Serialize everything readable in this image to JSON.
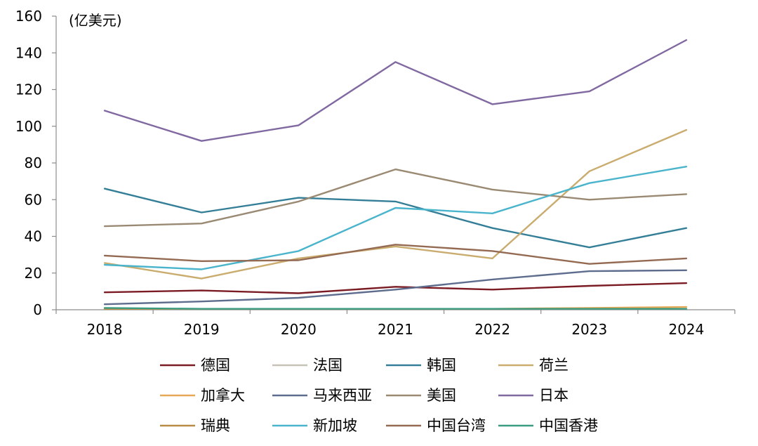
{
  "chart_data": {
    "type": "line",
    "unit_label": "(亿美元)",
    "x": [
      "2018",
      "2019",
      "2020",
      "2021",
      "2022",
      "2023",
      "2024"
    ],
    "ylim": [
      0,
      160
    ],
    "yticks": [
      0,
      20,
      40,
      60,
      80,
      100,
      120,
      140,
      160
    ],
    "grid": false,
    "legend_position": "bottom",
    "series": [
      {
        "name": "德国",
        "color": "#7b1b23",
        "values": [
          9.5,
          10.5,
          9,
          12.5,
          11,
          13,
          14.5
        ]
      },
      {
        "name": "法国",
        "color": "#c6c2b7",
        "values": [
          0.5,
          0.5,
          0.5,
          0.5,
          0.5,
          0.5,
          0.5
        ]
      },
      {
        "name": "韩国",
        "color": "#347f97",
        "values": [
          66,
          53,
          61,
          59,
          44.5,
          34,
          44.5
        ]
      },
      {
        "name": "荷兰",
        "color": "#c9ac6e",
        "values": [
          25.5,
          17,
          28,
          34.5,
          28,
          75.5,
          98
        ]
      },
      {
        "name": "加拿大",
        "color": "#e5a957",
        "values": [
          0.5,
          0.5,
          0.5,
          0.5,
          0.5,
          1,
          1.5
        ]
      },
      {
        "name": "马来西亚",
        "color": "#5e6d8e",
        "values": [
          3,
          4.5,
          6.5,
          11,
          16.5,
          21,
          21.5
        ]
      },
      {
        "name": "美国",
        "color": "#9a8a73",
        "values": [
          45.5,
          47,
          59,
          76.5,
          65.5,
          60,
          63
        ]
      },
      {
        "name": "日本",
        "color": "#8068a0",
        "values": [
          108.5,
          92,
          100.5,
          135,
          112,
          119,
          147
        ]
      },
      {
        "name": "瑞典",
        "color": "#b88b46",
        "values": [
          0.5,
          0.5,
          0.5,
          0.5,
          0.5,
          0.5,
          0.5
        ]
      },
      {
        "name": "新加坡",
        "color": "#4ab4cc",
        "values": [
          24.5,
          22,
          32,
          55.5,
          52.5,
          69,
          78
        ]
      },
      {
        "name": "中国台湾",
        "color": "#946a52",
        "values": [
          29.5,
          26.5,
          27,
          35.5,
          32,
          25,
          28
        ]
      },
      {
        "name": "中国香港",
        "color": "#3c9c82",
        "values": [
          1,
          0.5,
          0.5,
          0.5,
          0.5,
          0.5,
          0.5
        ]
      }
    ]
  }
}
